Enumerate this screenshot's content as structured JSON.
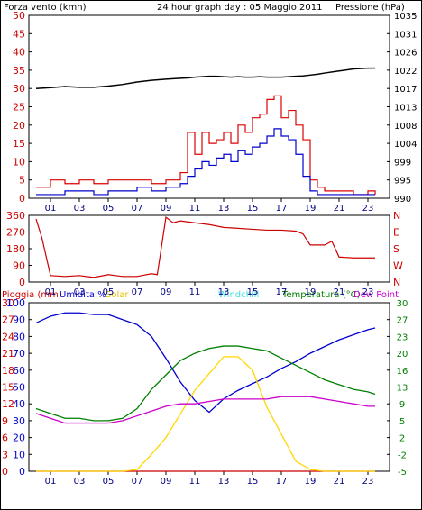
{
  "header": {
    "wind_label": "Forza vento (kmh)",
    "title": "24 hour graph day : 05 Maggio 2011",
    "pressure_label": "Pressione (hPa)"
  },
  "x_ticks": [
    "01",
    "03",
    "05",
    "07",
    "09",
    "11",
    "13",
    "15",
    "17",
    "19",
    "21",
    "23"
  ],
  "panel1": {
    "wind_ticks": [
      "0",
      "5",
      "10",
      "15",
      "20",
      "25",
      "30",
      "35",
      "40",
      "45",
      "50"
    ],
    "pressure_ticks": [
      "990",
      "995",
      "999",
      "1004",
      "1008",
      "1013",
      "1017",
      "1022",
      "1026",
      "1031",
      "1035"
    ]
  },
  "panel2": {
    "deg_ticks": [
      "0",
      "90",
      "180",
      "270",
      "360"
    ],
    "compass": [
      "N",
      "W",
      "S",
      "E",
      "N"
    ]
  },
  "panel3": {
    "labels": {
      "rain": "Pioggia (mm)",
      "humidity": "Umidita %",
      "solar": "Solar",
      "windchill": "Windchill",
      "temperature": "Temperatura (°C)",
      "dewpoint": "Dew Point"
    },
    "rain_ticks": [
      "0",
      "3",
      "6",
      "9",
      "12",
      "15",
      "18",
      "21",
      "24",
      "27",
      "30"
    ],
    "hum_ticks": [
      "0",
      "10",
      "20",
      "30",
      "40",
      "50",
      "60",
      "70",
      "80",
      "90",
      "100"
    ],
    "temp_ticks": [
      "-5",
      "-2",
      "2",
      "5",
      "9",
      "13",
      "16",
      "20",
      "23",
      "27",
      "30"
    ]
  },
  "colors": {
    "wind_gust": "#dd0000",
    "wind_avg": "#0000cc",
    "pressure": "#000000",
    "direction": "#cc0000",
    "rain": "#cc0000",
    "humidity": "#0000cc",
    "solar": "#ffd700",
    "windchill": "#66ffff",
    "temperature": "#008000",
    "dewpoint": "#cc00cc"
  },
  "chart_data": [
    {
      "type": "line",
      "title": "24 hour graph day : 05 Maggio 2011",
      "xlabel": "",
      "ylabel": "Forza vento (kmh)",
      "y2label": "Pressione (hPa)",
      "ylim": [
        0,
        50
      ],
      "y2lim": [
        990,
        1035
      ],
      "x": [
        0,
        1,
        2,
        3,
        4,
        5,
        6,
        7,
        8,
        9,
        10,
        10.5,
        11,
        11.5,
        12,
        12.5,
        13,
        13.5,
        14,
        14.5,
        15,
        15.5,
        16,
        16.5,
        17,
        17.5,
        18,
        18.5,
        19,
        19.5,
        20,
        21,
        22,
        23,
        23.5
      ],
      "series": [
        {
          "name": "Forza vento (kmh)",
          "axis": "left",
          "values": [
            3,
            5,
            4,
            5,
            4,
            5,
            5,
            5,
            4,
            5,
            7,
            18,
            12,
            18,
            15,
            16,
            18,
            15,
            20,
            18,
            22,
            23,
            27,
            28,
            22,
            24,
            20,
            16,
            5,
            3,
            2,
            2,
            1,
            2,
            1
          ]
        },
        {
          "name": "",
          "axis": "left",
          "values": [
            1,
            1,
            2,
            2,
            1,
            2,
            2,
            3,
            2,
            3,
            4,
            6,
            8,
            10,
            9,
            11,
            12,
            10,
            13,
            12,
            14,
            15,
            17,
            19,
            17,
            16,
            12,
            6,
            2,
            1,
            1,
            1,
            1,
            1,
            1
          ]
        },
        {
          "name": "Pressione (hPa)",
          "axis": "right",
          "values": [
            1017,
            1017.2,
            1017.5,
            1017.3,
            1017.3,
            1017.6,
            1018,
            1018.6,
            1019,
            1019.3,
            1019.5,
            1019.6,
            1019.8,
            1019.9,
            1020,
            1020,
            1019.9,
            1019.8,
            1019.9,
            1019.8,
            1019.8,
            1019.9,
            1019.8,
            1019.8,
            1019.8,
            1019.9,
            1020,
            1020.1,
            1020.3,
            1020.5,
            1020.8,
            1021.3,
            1021.8,
            1022,
            1022
          ]
        }
      ]
    },
    {
      "type": "line",
      "title": "",
      "xlabel": "",
      "ylabel": "",
      "ylim": [
        0,
        360
      ],
      "x": [
        0,
        0.4,
        1,
        2,
        3,
        4,
        5,
        6,
        7,
        8,
        8.4,
        9,
        9.5,
        10,
        11,
        12,
        13,
        14,
        15,
        16,
        17,
        18,
        18.5,
        19,
        20,
        20.5,
        21,
        22,
        23,
        23.5
      ],
      "series": [
        {
          "name": "",
          "values": [
            340,
            240,
            35,
            30,
            35,
            25,
            40,
            30,
            30,
            45,
            40,
            350,
            320,
            330,
            320,
            310,
            295,
            290,
            285,
            280,
            280,
            275,
            260,
            200,
            200,
            220,
            135,
            130,
            130,
            130
          ]
        }
      ]
    },
    {
      "type": "line",
      "title": "",
      "xlabel": "",
      "ylabel": "",
      "ylim": [
        0,
        100
      ],
      "y2lim": [
        -5,
        30
      ],
      "x": [
        0,
        1,
        2,
        3,
        4,
        5,
        6,
        7,
        8,
        9,
        10,
        11,
        12,
        13,
        14,
        15,
        16,
        17,
        18,
        19,
        20,
        21,
        22,
        23,
        23.5
      ],
      "series": [
        {
          "name": "Pioggia (mm)",
          "axis": "rain_mm",
          "ylim": [
            0,
            30
          ],
          "values": [
            0,
            0,
            0,
            0,
            0,
            0,
            0,
            0,
            0,
            0,
            0,
            0,
            0,
            0,
            0,
            0,
            0,
            0,
            0,
            0,
            0,
            0,
            0,
            0,
            0
          ]
        },
        {
          "name": "Umidita %",
          "axis": "percent",
          "values": [
            88,
            92,
            94,
            94,
            93,
            93,
            90,
            87,
            80,
            67,
            53,
            42,
            35,
            43,
            48,
            52,
            56,
            61,
            65,
            70,
            74,
            78,
            81,
            84,
            85
          ]
        },
        {
          "name": "Solar",
          "axis": "percent",
          "values": [
            0,
            0,
            0,
            0,
            0,
            0,
            0,
            1,
            10,
            20,
            34,
            48,
            58,
            68,
            68,
            60,
            38,
            22,
            6,
            1,
            0,
            0,
            0,
            0,
            0
          ]
        },
        {
          "name": "Temperatura (°C)",
          "axis": "temp_C",
          "values": [
            8,
            7,
            6,
            6,
            5.5,
            5.5,
            6,
            8,
            12,
            15,
            18,
            19.5,
            20.5,
            21,
            21,
            20.5,
            20,
            18.5,
            17,
            15.5,
            14,
            13,
            12,
            11.5,
            11
          ]
        },
        {
          "name": "Dew Point",
          "axis": "temp_C",
          "values": [
            7,
            6,
            5,
            5,
            5,
            5,
            5.5,
            6.5,
            7.5,
            8.5,
            9,
            9,
            9.5,
            10,
            10,
            10,
            10,
            10.5,
            10.5,
            10.5,
            10,
            9.5,
            9,
            8.5,
            8.5
          ]
        }
      ]
    }
  ]
}
